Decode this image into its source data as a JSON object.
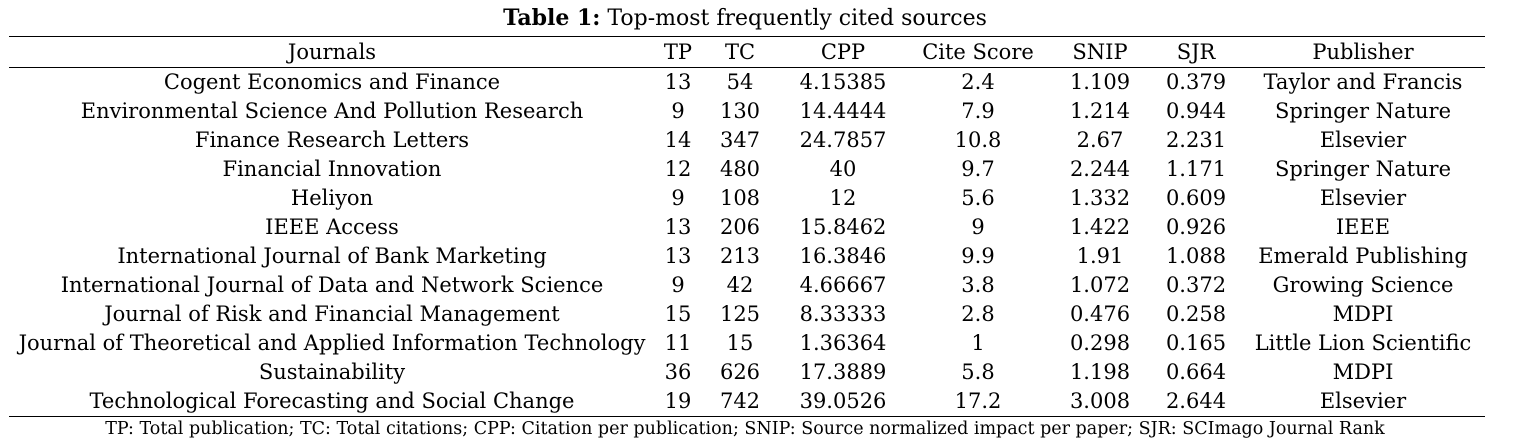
{
  "caption": {
    "label": "Table 1:",
    "text": " Top-most frequently cited sources"
  },
  "table": {
    "columns": [
      "Journals",
      "TP",
      "TC",
      "CPP",
      "Cite Score",
      "SNIP",
      "SJR",
      "Publisher"
    ],
    "rows": [
      [
        "Cogent Economics and Finance",
        "13",
        "54",
        "4.15385",
        "2.4",
        "1.109",
        "0.379",
        "Taylor and Francis"
      ],
      [
        "Environmental Science And Pollution Research",
        "9",
        "130",
        "14.4444",
        "7.9",
        "1.214",
        "0.944",
        "Springer Nature"
      ],
      [
        "Finance Research Letters",
        "14",
        "347",
        "24.7857",
        "10.8",
        "2.67",
        "2.231",
        "Elsevier"
      ],
      [
        "Financial Innovation",
        "12",
        "480",
        "40",
        "9.7",
        "2.244",
        "1.171",
        "Springer Nature"
      ],
      [
        "Heliyon",
        "9",
        "108",
        "12",
        "5.6",
        "1.332",
        "0.609",
        "Elsevier"
      ],
      [
        "IEEE Access",
        "13",
        "206",
        "15.8462",
        "9",
        "1.422",
        "0.926",
        "IEEE"
      ],
      [
        "International Journal of Bank Marketing",
        "13",
        "213",
        "16.3846",
        "9.9",
        "1.91",
        "1.088",
        "Emerald Publishing"
      ],
      [
        "International Journal of Data and Network Science",
        "9",
        "42",
        "4.66667",
        "3.8",
        "1.072",
        "0.372",
        "Growing Science"
      ],
      [
        "Journal of Risk and Financial Management",
        "15",
        "125",
        "8.33333",
        "2.8",
        "0.476",
        "0.258",
        "MDPI"
      ],
      [
        "Journal of Theoretical and Applied Information Technology",
        "11",
        "15",
        "1.36364",
        "1",
        "0.298",
        "0.165",
        "Little Lion Scientific"
      ],
      [
        "Sustainability",
        "36",
        "626",
        "17.3889",
        "5.8",
        "1.198",
        "0.664",
        "MDPI"
      ],
      [
        "Technological Forecasting and Social Change",
        "19",
        "742",
        "39.0526",
        "17.2",
        "3.008",
        "2.644",
        "Elsevier"
      ]
    ]
  },
  "footnote": "TP: Total publication; TC: Total citations; CPP: Citation per publication; SNIP: Source normalized impact per paper; SJR: SCImago Journal Rank"
}
